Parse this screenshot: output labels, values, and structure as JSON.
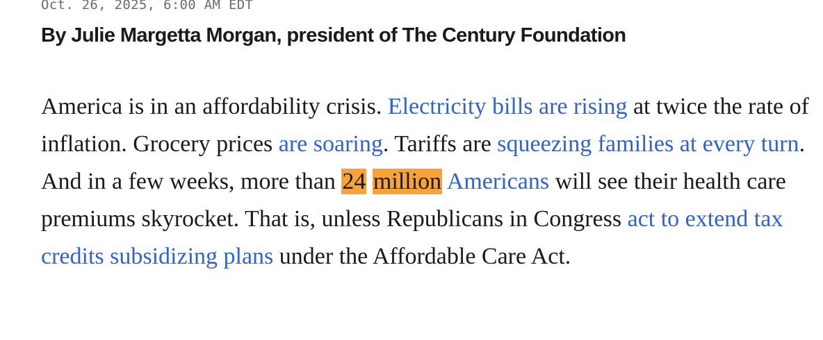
{
  "article": {
    "dateline": "Oct. 26, 2025, 6:00 AM EDT",
    "byline": "By Julie Margetta Morgan, president of The Century Foundation",
    "paragraph": {
      "t1": "America is in an affordability crisis. ",
      "link1": "Electricity bills are rising",
      "t2": " at twice the rate of inflation. Grocery prices ",
      "link2": "are soaring",
      "t3": ". Tariffs are ",
      "link3": "squeezing families at every turn",
      "t4": ". And in a few weeks, more than ",
      "highlight1": "24",
      "t5": " ",
      "highlight2": "million",
      "t6": " ",
      "link4": "Americans",
      "t7": " will see their health care premiums skyrocket. That is, unless Republicans in Congress ",
      "link5": "act to extend tax credits subsidizing plans",
      "t8": " under the Affordable Care Act."
    }
  },
  "colors": {
    "link": "#2e63d6",
    "highlight": "#f7a33a",
    "text": "#1a1a1a",
    "dateline": "#6b6b6b"
  }
}
